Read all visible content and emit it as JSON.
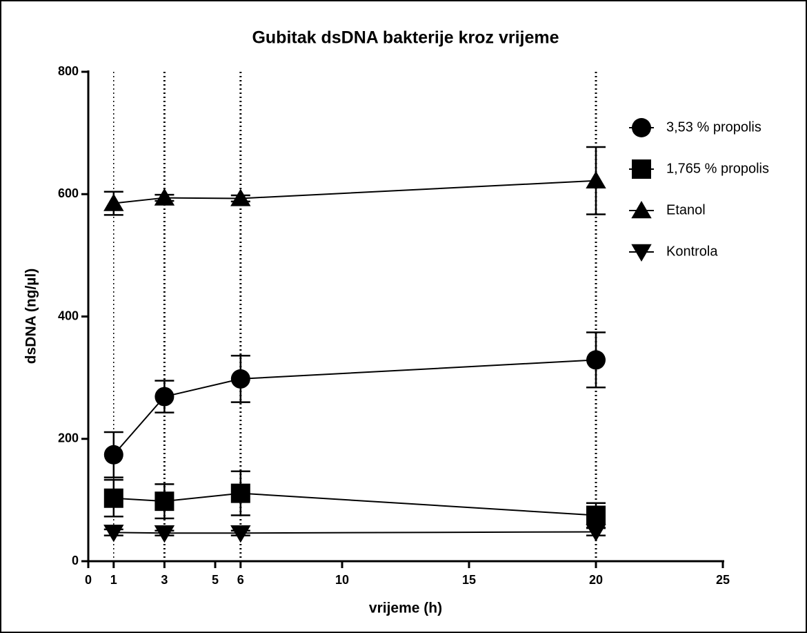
{
  "chart_data": {
    "type": "line",
    "title": "Gubitak dsDNA bakterije kroz vrijeme",
    "xlabel": "vrijeme (h)",
    "ylabel": "dsDNA (ng/µl)",
    "x": [
      1,
      3,
      6,
      20
    ],
    "series": [
      {
        "name": "3,53 % propolis",
        "marker": "circle",
        "color": "#000000",
        "values": [
          174,
          269,
          298,
          329
        ],
        "errors": [
          37,
          26,
          38,
          45
        ]
      },
      {
        "name": "1,765 % propolis",
        "marker": "square",
        "color": "#000000",
        "values": [
          103,
          98,
          111,
          75
        ],
        "errors": [
          30,
          28,
          36,
          20
        ]
      },
      {
        "name": "Etanol",
        "marker": "triangle-up",
        "color": "#000000",
        "values": [
          585,
          594,
          593,
          622
        ],
        "errors": [
          19,
          5,
          5,
          55
        ]
      },
      {
        "name": "Kontrola",
        "marker": "triangle-down",
        "color": "#000000",
        "values": [
          47,
          46,
          46,
          48
        ],
        "errors": [
          5,
          4,
          4,
          6
        ]
      }
    ],
    "vlines": [
      1,
      3,
      6,
      20
    ],
    "xlim": [
      0,
      25
    ],
    "xticks": [
      0,
      1,
      3,
      5,
      6,
      10,
      15,
      20,
      25
    ],
    "ylim": [
      0,
      800
    ],
    "yticks": [
      0,
      200,
      400,
      600,
      800
    ],
    "legend": "right"
  }
}
